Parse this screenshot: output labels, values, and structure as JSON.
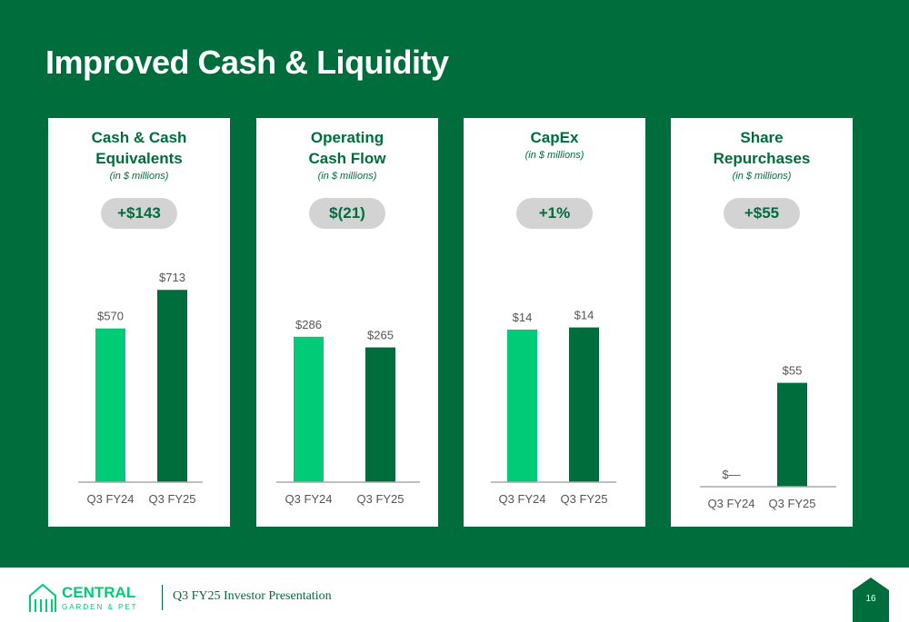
{
  "title": "Improved Cash & Liquidity",
  "footer": {
    "logo_top": "CENTRAL",
    "logo_bottom": "GARDEN & PET",
    "presentation": "Q3 FY25 Investor Presentation",
    "page": "16"
  },
  "colors": {
    "background": "#006d3c",
    "bar_prior": "#00cc77",
    "bar_current": "#006d3c",
    "pill": "#d3d3d3"
  },
  "panels": [
    {
      "title_line1": "Cash & Cash",
      "title_line2": "Equivalents",
      "subtitle": "(in $ millions)",
      "badge": "+$143"
    },
    {
      "title_line1": "Operating",
      "title_line2": "Cash Flow",
      "subtitle": "(in $ millions)",
      "badge": "$(21)"
    },
    {
      "title_line1": "CapEx",
      "title_line2": "",
      "subtitle": "(in $ millions)",
      "badge": "+1%"
    },
    {
      "title_line1": "Share",
      "title_line2": "Repurchases",
      "subtitle": "(in $ millions)",
      "badge": "+$55"
    }
  ],
  "chart_data": [
    {
      "type": "bar",
      "title": "Cash & Cash Equivalents",
      "subtitle": "(in $ millions)",
      "categories": [
        "Q3 FY24",
        "Q3 FY25"
      ],
      "values": [
        570,
        713
      ],
      "labels": [
        "$570",
        "$713"
      ]
    },
    {
      "type": "bar",
      "title": "Operating Cash Flow",
      "subtitle": "(in $ millions)",
      "categories": [
        "Q3 FY24",
        "Q3 FY25"
      ],
      "values": [
        286,
        265
      ],
      "labels": [
        "$286",
        "$265"
      ]
    },
    {
      "type": "bar",
      "title": "CapEx",
      "subtitle": "(in $ millions)",
      "categories": [
        "Q3 FY24",
        "Q3 FY25"
      ],
      "values": [
        14,
        14.2
      ],
      "labels": [
        "$14",
        "$14"
      ]
    },
    {
      "type": "bar",
      "title": "Share Repurchases",
      "subtitle": "(in $ millions)",
      "categories": [
        "Q3 FY24",
        "Q3 FY25"
      ],
      "values": [
        0,
        55
      ],
      "labels": [
        "$—",
        "$55"
      ]
    }
  ]
}
